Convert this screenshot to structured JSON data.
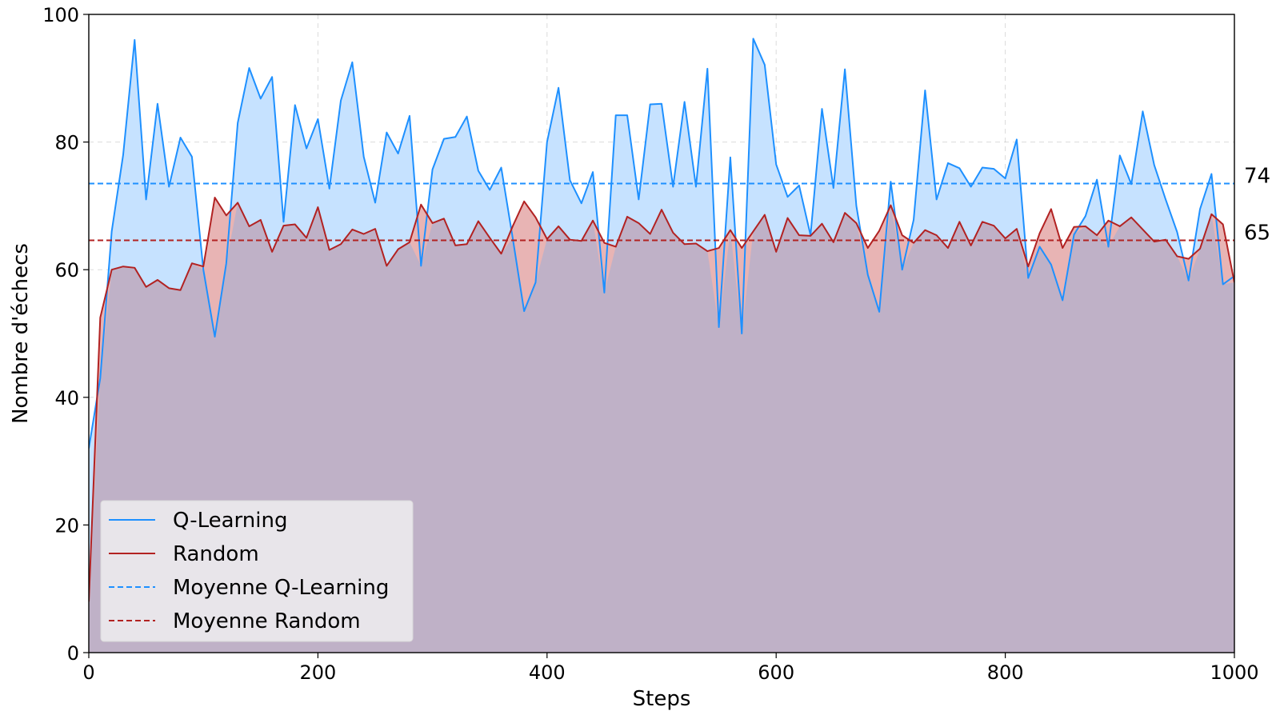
{
  "chart_data": {
    "type": "line",
    "title": "",
    "xlabel": "Steps",
    "ylabel": "Nombre d'échecs",
    "xlim": [
      0,
      1000
    ],
    "ylim": [
      0,
      100
    ],
    "x_ticks": [
      0,
      200,
      400,
      600,
      800,
      1000
    ],
    "y_ticks": [
      0,
      20,
      40,
      60,
      80,
      100
    ],
    "grid": true,
    "legend_position": "bottom-left",
    "x": [
      0,
      10,
      20,
      30,
      40,
      50,
      60,
      70,
      80,
      90,
      100,
      110,
      120,
      130,
      140,
      150,
      160,
      170,
      180,
      190,
      200,
      210,
      220,
      230,
      240,
      250,
      260,
      270,
      280,
      290,
      300,
      310,
      320,
      330,
      340,
      350,
      360,
      370,
      380,
      390,
      400,
      410,
      420,
      430,
      440,
      450,
      460,
      470,
      480,
      490,
      500,
      510,
      520,
      530,
      540,
      550,
      560,
      570,
      580,
      590,
      600,
      610,
      620,
      630,
      640,
      650,
      660,
      670,
      680,
      690,
      700,
      710,
      720,
      730,
      740,
      750,
      760,
      770,
      780,
      790,
      800,
      810,
      820,
      830,
      840,
      850,
      860,
      870,
      880,
      890,
      900,
      910,
      920,
      930,
      940,
      950,
      960,
      970,
      980,
      990,
      1000
    ],
    "series": [
      {
        "name": "Q-Learning",
        "color": "#1E90FF",
        "fill": "#C6E2FF",
        "values": [
          32,
          43,
          66,
          78,
          96,
          71,
          86,
          73,
          80.7,
          77.7,
          60,
          49.5,
          61,
          83,
          91.6,
          86.8,
          90.2,
          67.5,
          85.8,
          79,
          83.6,
          72.7,
          86.5,
          92.5,
          77.7,
          70.5,
          81.5,
          78.2,
          84.1,
          60.6,
          75.7,
          80.5,
          80.8,
          84,
          75.5,
          72.5,
          76,
          65,
          53.5,
          58,
          80,
          88.5,
          74,
          70.4,
          75.3,
          56.4,
          84.2,
          84.2,
          71,
          85.9,
          86,
          73,
          86.3,
          73,
          91.5,
          51,
          77.6,
          50,
          96.2,
          92.1,
          76.5,
          71.4,
          73.2,
          65.4,
          85.2,
          72.8,
          91.4,
          70,
          59.2,
          53.4,
          73.8,
          60,
          67.8,
          88.1,
          71,
          76.7,
          75.9,
          73,
          76,
          75.8,
          74.3,
          80.4,
          58.7,
          63.6,
          60.8,
          55.2,
          65.5,
          68.4,
          74.1,
          63.6,
          77.9,
          73.4,
          84.8,
          76.4,
          71,
          65.9,
          58.3,
          69.5,
          75,
          57.7,
          59
        ]
      },
      {
        "name": "Random",
        "color": "#B22222",
        "fill": "#E8B4B4",
        "values": [
          8,
          52.5,
          60,
          60.5,
          60.3,
          57.3,
          58.4,
          57.1,
          56.8,
          61,
          60.5,
          71.3,
          68.5,
          70.5,
          66.8,
          67.8,
          62.8,
          66.9,
          67.1,
          65,
          69.8,
          63.1,
          64,
          66.3,
          65.6,
          66.4,
          60.6,
          63.2,
          64.3,
          70.2,
          67.3,
          68,
          63.8,
          64,
          67.6,
          65,
          62.5,
          66.8,
          70.7,
          68.2,
          64.8,
          66.8,
          64.7,
          64.5,
          67.7,
          64.2,
          63.6,
          68.3,
          67.3,
          65.6,
          69.4,
          65.8,
          64,
          64.1,
          62.9,
          63.4,
          66.2,
          63.4,
          66,
          68.6,
          62.8,
          68.1,
          65.4,
          65.3,
          67.2,
          64.3,
          68.9,
          67.3,
          63.4,
          66.1,
          70.1,
          65.4,
          64.2,
          66.2,
          65.4,
          63.4,
          67.5,
          63.8,
          67.5,
          66.9,
          64.9,
          66.4,
          60.5,
          65.7,
          69.5,
          63.4,
          66.7,
          66.8,
          65.4,
          67.7,
          66.8,
          68.2,
          66.3,
          64.4,
          64.7,
          62.1,
          61.7,
          63.3,
          68.7,
          67.1,
          58
        ]
      }
    ],
    "means": [
      {
        "name": "Moyenne Q-Learning",
        "value": 73.5,
        "label": "74",
        "color": "#1E90FF"
      },
      {
        "name": "Moyenne Random",
        "value": 64.6,
        "label": "65",
        "color": "#B22222"
      }
    ],
    "overlap_fill": "#BFB1C7"
  },
  "legend": {
    "items": [
      {
        "label": "Q-Learning",
        "color": "#1E90FF",
        "style": "solid"
      },
      {
        "label": "Random",
        "color": "#B22222",
        "style": "solid"
      },
      {
        "label": "Moyenne Q-Learning",
        "color": "#1E90FF",
        "style": "dashed"
      },
      {
        "label": "Moyenne Random",
        "color": "#B22222",
        "style": "dashed"
      }
    ]
  }
}
